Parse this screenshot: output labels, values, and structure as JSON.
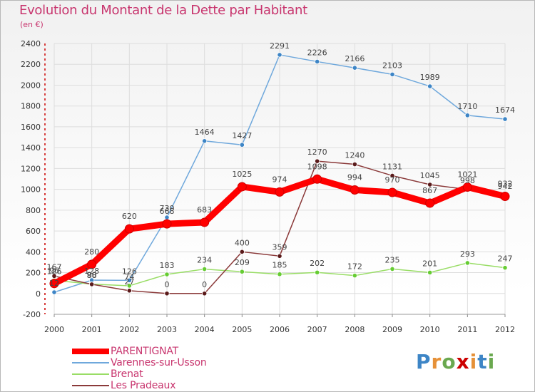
{
  "header": {
    "title": "Evolution du Montant de la Dette par Habitant",
    "subtitle": "(en €)"
  },
  "logo": {
    "text": "Proxiti"
  },
  "colors": {
    "PARENTIGNAT": "#ff0000",
    "Varennes-sur-Usson": "#6fa8dc",
    "Brenat": "#99dd66",
    "Les Pradeaux": "#8b3a3a",
    "title": "#c8356e",
    "grid": "#dddddd"
  },
  "chart_data": {
    "type": "line",
    "title": "Evolution du Montant de la Dette par Habitant",
    "subtitle": "(en €)",
    "xlabel": "",
    "ylabel": "",
    "x": [
      "2000",
      "2001",
      "2002",
      "2003",
      "2004",
      "2005",
      "2006",
      "2007",
      "2008",
      "2009",
      "2010",
      "2011",
      "2012"
    ],
    "ylim": [
      -200,
      2400
    ],
    "yticks": [
      -200,
      0,
      200,
      400,
      600,
      800,
      1000,
      1200,
      1400,
      1600,
      1800,
      2000,
      2200,
      2400
    ],
    "grid": true,
    "legend_position": "bottom-left",
    "series": [
      {
        "name": "PARENTIGNAT",
        "values": [
          96,
          280,
          620,
          668,
          683,
          1025,
          974,
          1098,
          994,
          970,
          867,
          1021,
          932
        ]
      },
      {
        "name": "Varennes-sur-Usson",
        "values": [
          12,
          128,
          126,
          730,
          1464,
          1427,
          2291,
          2226,
          2166,
          2103,
          1989,
          1710,
          1674
        ]
      },
      {
        "name": "Brenat",
        "values": [
          126,
          90,
          74,
          183,
          234,
          209,
          185,
          202,
          172,
          235,
          201,
          293,
          247
        ]
      },
      {
        "name": "Les Pradeaux",
        "values": [
          167,
          88,
          27,
          0,
          0,
          400,
          359,
          1270,
          1240,
          1131,
          1045,
          998,
          942
        ]
      }
    ]
  }
}
